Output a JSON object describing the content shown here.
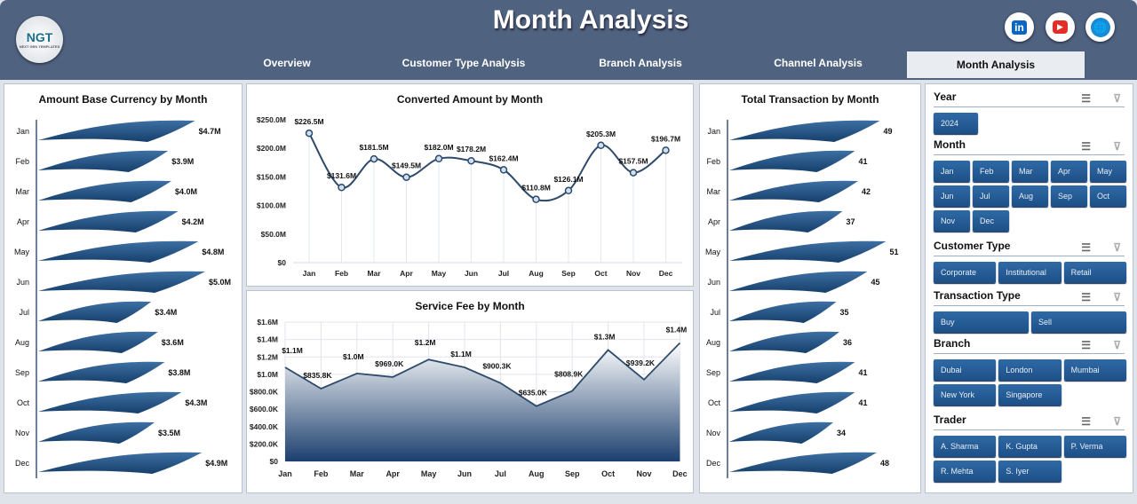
{
  "header": {
    "title": "Month Analysis",
    "logo_text": "NGT",
    "logo_sub": "NEXT GEN TEMPLATES",
    "tabs": [
      {
        "label": "Overview"
      },
      {
        "label": "Customer Type Analysis"
      },
      {
        "label": "Branch Analysis"
      },
      {
        "label": "Channel Analysis"
      },
      {
        "label": "Month Analysis",
        "active": true
      }
    ],
    "social": [
      {
        "icon": "linkedin-icon",
        "label": "in",
        "color": "#0a66c2"
      },
      {
        "icon": "youtube-icon",
        "label": "▶",
        "color": "#e52d27"
      },
      {
        "icon": "globe-icon",
        "label": "🌐",
        "color": "#1a8ad4"
      }
    ]
  },
  "colors": {
    "header": "#4f6380",
    "bar": "#1f4e7e",
    "line": "#2d4a6b",
    "button": "#2a5f98"
  },
  "chart_data": [
    {
      "type": "bar",
      "title": "Amount Base Currency by Month",
      "categories": [
        "Jan",
        "Feb",
        "Mar",
        "Apr",
        "May",
        "Jun",
        "Jul",
        "Aug",
        "Sep",
        "Oct",
        "Nov",
        "Dec"
      ],
      "values": [
        4.7,
        3.9,
        4.0,
        4.2,
        4.8,
        5.0,
        3.4,
        3.6,
        3.8,
        4.3,
        3.5,
        4.9
      ],
      "labels": [
        "$4.7M",
        "$3.9M",
        "$4.0M",
        "$4.2M",
        "$4.8M",
        "$5.0M",
        "$3.4M",
        "$3.6M",
        "$3.8M",
        "$4.3M",
        "$3.5M",
        "$4.9M"
      ],
      "unit": "$M",
      "orientation": "horizontal"
    },
    {
      "type": "line",
      "title": "Converted Amount by Month",
      "categories": [
        "Jan",
        "Feb",
        "Mar",
        "Apr",
        "May",
        "Jun",
        "Jul",
        "Aug",
        "Sep",
        "Oct",
        "Nov",
        "Dec"
      ],
      "values": [
        226.5,
        131.6,
        181.5,
        149.5,
        182.0,
        178.2,
        162.4,
        110.8,
        126.1,
        205.3,
        157.5,
        196.7
      ],
      "labels": [
        "$226.5M",
        "$131.6M",
        "$181.5M",
        "$149.5M",
        "$182.0M",
        "$178.2M",
        "$162.4M",
        "$110.8M",
        "$126.1M",
        "$205.3M",
        "$157.5M",
        "$196.7M"
      ],
      "ylim": [
        0,
        250
      ],
      "yticks": [
        "$0",
        "$50.0M",
        "$100.0M",
        "$150.0M",
        "$200.0M",
        "$250.0M"
      ],
      "smooth": true
    },
    {
      "type": "area",
      "title": "Service Fee by Month",
      "categories": [
        "Jan",
        "Feb",
        "Mar",
        "Apr",
        "May",
        "Jun",
        "Jul",
        "Aug",
        "Sep",
        "Oct",
        "Nov",
        "Dec"
      ],
      "values": [
        1.08,
        0.8358,
        1.01,
        0.969,
        1.17,
        1.08,
        0.9003,
        0.635,
        0.8089,
        1.28,
        0.9392,
        1.36
      ],
      "labels": [
        "$1.1M",
        "$835.8K",
        "$1.0M",
        "$969.0K",
        "$1.2M",
        "$1.1M",
        "$900.3K",
        "$635.0K",
        "$808.9K",
        "$1.3M",
        "$939.2K",
        "$1.4M"
      ],
      "ylim": [
        0,
        1.6
      ],
      "yticks": [
        "$0",
        "$200.0K",
        "$400.0K",
        "$600.0K",
        "$800.0K",
        "$1.0M",
        "$1.2M",
        "$1.4M",
        "$1.6M"
      ],
      "unit": "$M"
    },
    {
      "type": "bar",
      "title": "Total Transaction by Month",
      "categories": [
        "Jan",
        "Feb",
        "Mar",
        "Apr",
        "May",
        "Jun",
        "Jul",
        "Aug",
        "Sep",
        "Oct",
        "Nov",
        "Dec"
      ],
      "values": [
        49,
        41,
        42,
        37,
        51,
        45,
        35,
        36,
        41,
        41,
        34,
        48
      ],
      "labels": [
        "49",
        "41",
        "42",
        "37",
        "51",
        "45",
        "35",
        "36",
        "41",
        "41",
        "34",
        "48"
      ],
      "orientation": "horizontal"
    }
  ],
  "slicers": [
    {
      "title": "Year",
      "items": [
        "2024"
      ]
    },
    {
      "title": "Month",
      "items": [
        "Jan",
        "Feb",
        "Mar",
        "Apr",
        "May",
        "Jun",
        "Jul",
        "Aug",
        "Sep",
        "Oct",
        "Nov",
        "Dec"
      ]
    },
    {
      "title": "Customer Type",
      "items": [
        "Corporate",
        "Institutional",
        "Retail"
      ]
    },
    {
      "title": "Transaction Type",
      "items": [
        "Buy",
        "Sell"
      ]
    },
    {
      "title": "Branch",
      "items": [
        "Dubai",
        "London",
        "Mumbai",
        "New York",
        "Singapore"
      ]
    },
    {
      "title": "Trader",
      "items": [
        "A. Sharma",
        "K. Gupta",
        "P. Verma",
        "R. Mehta",
        "S. Iyer"
      ]
    }
  ]
}
